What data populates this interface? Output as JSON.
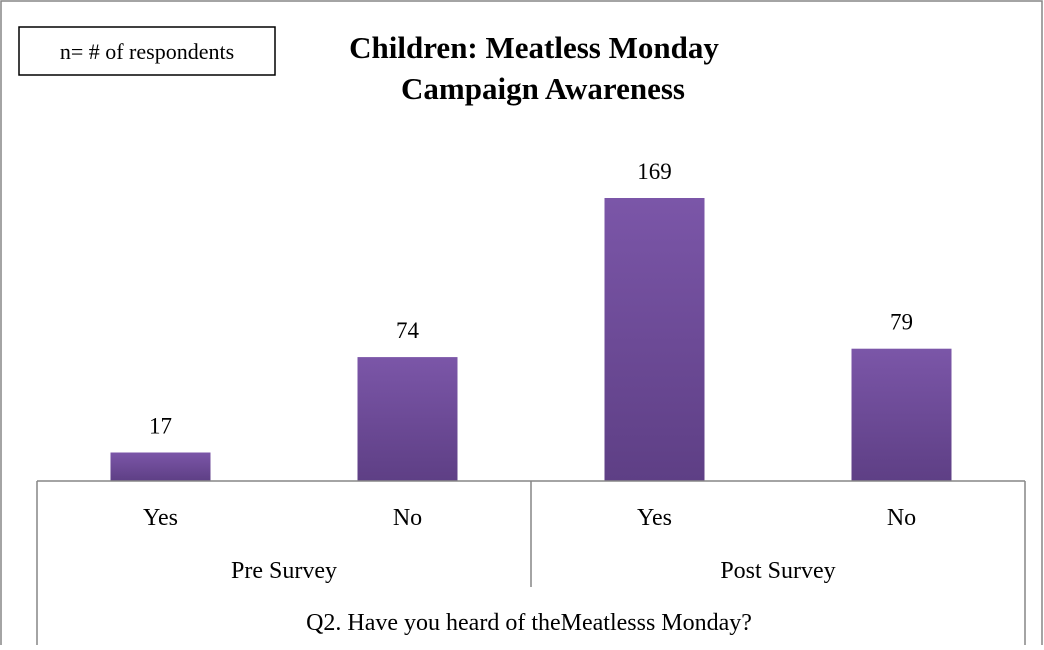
{
  "note": "n= # of respondents",
  "title_line1": "Children: Meatless Monday",
  "title_line2": "Campaign Awareness",
  "question": "Q2. Have you heard of theMeatlesss Monday?",
  "chart_data": {
    "type": "bar",
    "title": "Children: Meatless Monday Campaign Awareness",
    "xlabel": "Q2. Have you heard of theMeatlesss Monday?",
    "ylabel": "",
    "groups": [
      {
        "label": "Pre Survey",
        "categories": [
          "Yes",
          "No"
        ],
        "values": [
          17,
          74
        ]
      },
      {
        "label": "Post Survey",
        "categories": [
          "Yes",
          "No"
        ],
        "values": [
          169,
          79
        ]
      }
    ],
    "ylim": [
      0,
      170
    ],
    "data_labels": true,
    "grid": false,
    "legend": "none",
    "bar_color": "#7B56A8",
    "bar_color_dark": "#5E3F85"
  }
}
